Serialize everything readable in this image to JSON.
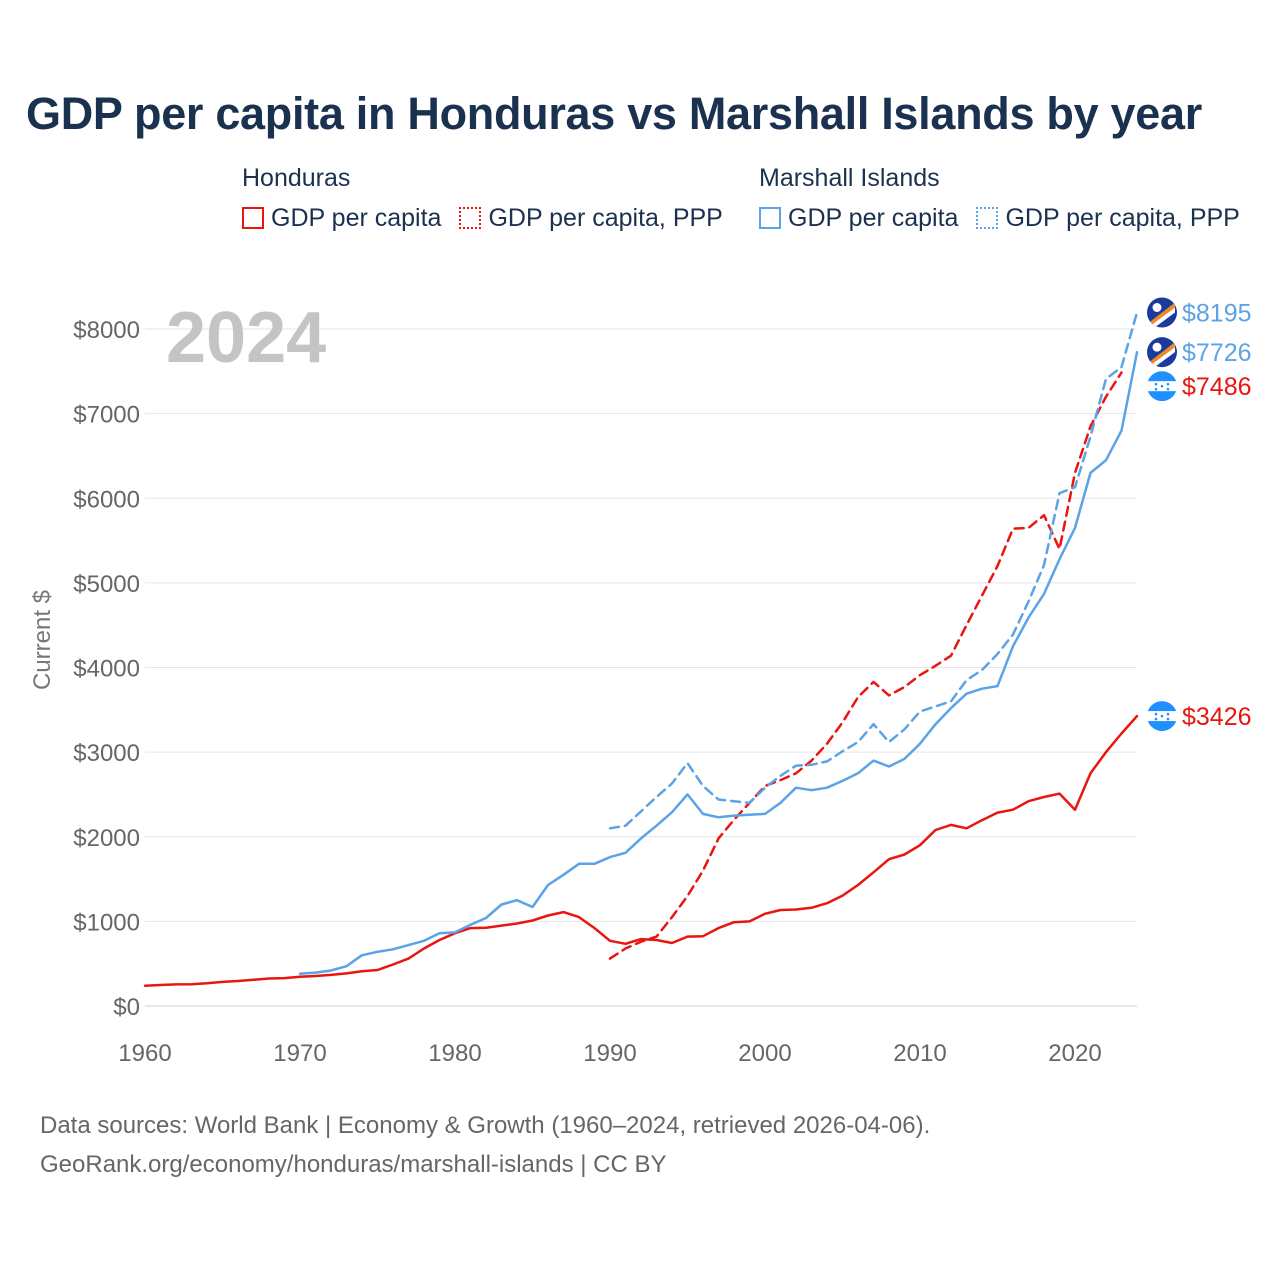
{
  "title": "GDP per capita in Honduras vs Marshall Islands by year",
  "legend": {
    "groups": [
      {
        "title": "Honduras",
        "color": "#e8160f",
        "items": [
          {
            "label": "GDP per capita",
            "style": "solid"
          },
          {
            "label": "GDP per capita, PPP",
            "style": "dotted"
          }
        ]
      },
      {
        "title": "Marshall Islands",
        "color": "#5ba3e6",
        "items": [
          {
            "label": "GDP per capita",
            "style": "solid"
          },
          {
            "label": "GDP per capita, PPP",
            "style": "dotted"
          }
        ]
      }
    ]
  },
  "sources": [
    "Data sources: World Bank | Economy & Growth (1960–2024, retrieved 2026-04-06).",
    "GeoRank.org/economy/honduras/marshall-islands | CC BY"
  ],
  "chart_data": {
    "type": "line",
    "title": "GDP per capita in Honduras vs Marshall Islands by year",
    "year_label": "2024",
    "xlabel": "",
    "ylabel": "Current $",
    "xlim": [
      1960,
      2024
    ],
    "ylim": [
      0,
      8000
    ],
    "x_ticks": [
      1960,
      1970,
      1980,
      1990,
      2000,
      2010,
      2020
    ],
    "y_ticks": [
      0,
      1000,
      2000,
      3000,
      4000,
      5000,
      6000,
      7000,
      8000
    ],
    "y_tick_labels": [
      "$0",
      "$1000",
      "$2000",
      "$3000",
      "$4000",
      "$5000",
      "$6000",
      "$7000",
      "$8000"
    ],
    "grid": true,
    "series": [
      {
        "name": "Honduras GDP per capita",
        "country": "Honduras",
        "color": "#e8160f",
        "dash": "solid",
        "end_label": "$3426",
        "flag": "honduras",
        "x_start": 1960,
        "values": [
          240,
          248,
          255,
          258,
          268,
          285,
          295,
          310,
          325,
          330,
          345,
          355,
          368,
          385,
          410,
          425,
          490,
          560,
          680,
          780,
          860,
          920,
          925,
          950,
          975,
          1010,
          1070,
          1110,
          1050,
          920,
          770,
          735,
          790,
          780,
          745,
          820,
          825,
          920,
          990,
          1000,
          1090,
          1135,
          1140,
          1160,
          1215,
          1305,
          1430,
          1580,
          1735,
          1790,
          1900,
          2080,
          2140,
          2100,
          2195,
          2285,
          2320,
          2420,
          2470,
          2510,
          2320,
          2750,
          3000,
          3220,
          3426
        ]
      },
      {
        "name": "Honduras GDP per capita, PPP",
        "country": "Honduras",
        "color": "#e8160f",
        "dash": "dashed",
        "end_label": "$7486",
        "flag": "honduras",
        "x_start": 1990,
        "values": [
          560,
          680,
          760,
          820,
          1050,
          1300,
          1600,
          1980,
          2200,
          2400,
          2600,
          2670,
          2750,
          2900,
          3100,
          3350,
          3650,
          3830,
          3670,
          3770,
          3910,
          4020,
          4140,
          4500,
          4850,
          5200,
          5640,
          5650,
          5800,
          5400,
          6300,
          6850,
          7200,
          7486
        ]
      },
      {
        "name": "Marshall Islands GDP per capita",
        "country": "Marshall Islands",
        "color": "#5ba3e6",
        "dash": "solid",
        "end_label": "$7726",
        "flag": "marshall",
        "x_start": 1970,
        "values": [
          380,
          395,
          420,
          470,
          600,
          640,
          670,
          720,
          770,
          860,
          870,
          960,
          1040,
          1200,
          1250,
          1170,
          1430,
          1550,
          1680,
          1680,
          1760,
          1810,
          1980,
          2130,
          2290,
          2500,
          2270,
          2230,
          2250,
          2260,
          2270,
          2400,
          2580,
          2550,
          2580,
          2660,
          2750,
          2900,
          2830,
          2920,
          3100,
          3330,
          3520,
          3690,
          3750,
          3780,
          4250,
          4590,
          4870,
          5280,
          5650,
          6300,
          6450,
          6800,
          7726
        ]
      },
      {
        "name": "Marshall Islands GDP per capita, PPP",
        "country": "Marshall Islands",
        "color": "#5ba3e6",
        "dash": "dashed",
        "end_label": "$8195",
        "flag": "marshall",
        "x_start": 1990,
        "values": [
          2100,
          2130,
          2300,
          2470,
          2630,
          2870,
          2600,
          2440,
          2420,
          2400,
          2580,
          2720,
          2840,
          2850,
          2890,
          3010,
          3120,
          3330,
          3120,
          3270,
          3480,
          3540,
          3600,
          3850,
          3970,
          4160,
          4390,
          4780,
          5210,
          6060,
          6130,
          6730,
          7410,
          7550,
          8195
        ]
      }
    ]
  }
}
